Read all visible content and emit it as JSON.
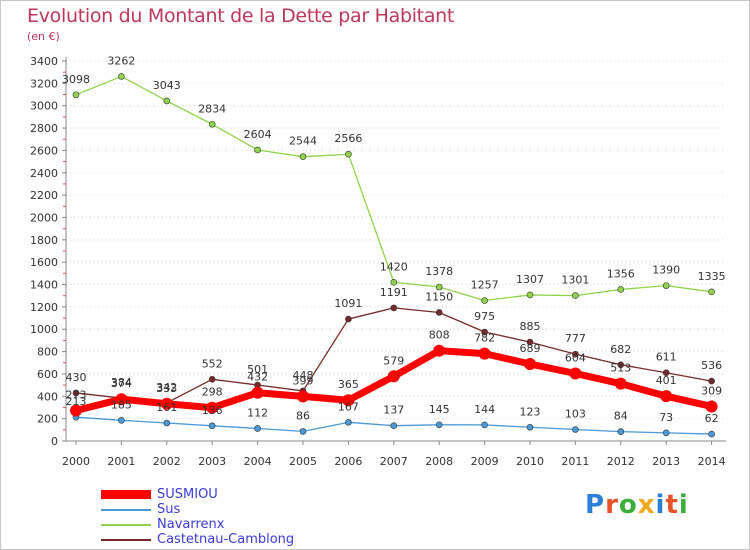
{
  "header": {
    "title": "Evolution du Montant de la Dette par Habitant",
    "unit": "(en €)"
  },
  "logo": {
    "text": "Proxiti"
  },
  "colors": {
    "grid": "#d0d0d0",
    "axis": "#888888",
    "tick_text": "#333333",
    "sus": "#4a9ad8",
    "navarrenx": "#8fd44a",
    "castetnau": "#7a2a2a",
    "susmiou": "#ff0000"
  },
  "chart_data": {
    "type": "line",
    "title": "Evolution du Montant de la Dette par Habitant",
    "subtitle": "(en €)",
    "xlabel": "",
    "ylabel": "",
    "categories": [
      "2000",
      "2001",
      "2002",
      "2003",
      "2004",
      "2005",
      "2006",
      "2007",
      "2008",
      "2009",
      "2010",
      "2011",
      "2012",
      "2013",
      "2014"
    ],
    "ylim": [
      0,
      3400
    ],
    "yticks": [
      0,
      200,
      400,
      600,
      800,
      1000,
      1200,
      1400,
      1600,
      1800,
      2000,
      2200,
      2400,
      2600,
      2800,
      3000,
      3200,
      3400
    ],
    "grid": false,
    "legend_position": "bottom-left",
    "series": [
      {
        "name": "SUSMIOU",
        "values": [
          273,
          374,
          333,
          298,
          432,
          399,
          365,
          579,
          808,
          782,
          689,
          604,
          513,
          401,
          309
        ]
      },
      {
        "name": "Sus",
        "values": [
          213,
          185,
          161,
          136,
          112,
          86,
          167,
          137,
          145,
          144,
          123,
          103,
          84,
          73,
          62
        ]
      },
      {
        "name": "Navarrenx",
        "values": [
          3098,
          3262,
          3043,
          2834,
          2604,
          2544,
          2566,
          1420,
          1378,
          1257,
          1307,
          1301,
          1356,
          1390,
          1335
        ]
      },
      {
        "name": "Castetnau-Camblong",
        "values": [
          430,
          384,
          342,
          552,
          501,
          448,
          1091,
          1191,
          1150,
          975,
          885,
          777,
          682,
          611,
          536
        ]
      }
    ]
  }
}
